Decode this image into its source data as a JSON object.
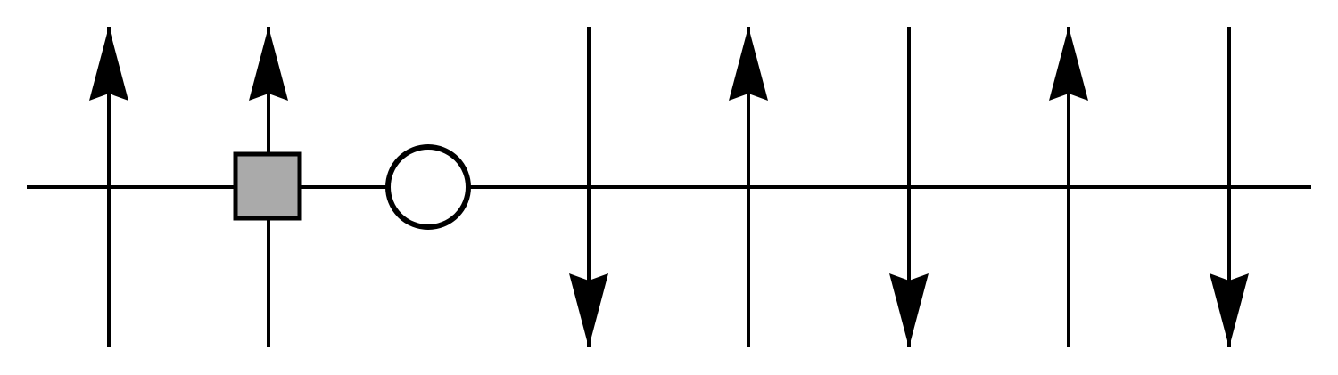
{
  "diagram": {
    "legs": [
      {
        "direction": "up"
      },
      {
        "direction": "up"
      },
      {
        "direction": "none"
      },
      {
        "direction": "down"
      },
      {
        "direction": "up"
      },
      {
        "direction": "down"
      },
      {
        "direction": "up"
      },
      {
        "direction": "down"
      }
    ],
    "vertices": [
      {
        "shape": "square",
        "fill": "#aaaaaa"
      },
      {
        "shape": "circle",
        "fill": "#ffffff"
      }
    ],
    "colors": {
      "line": "#000000",
      "background": "#ffffff"
    }
  }
}
